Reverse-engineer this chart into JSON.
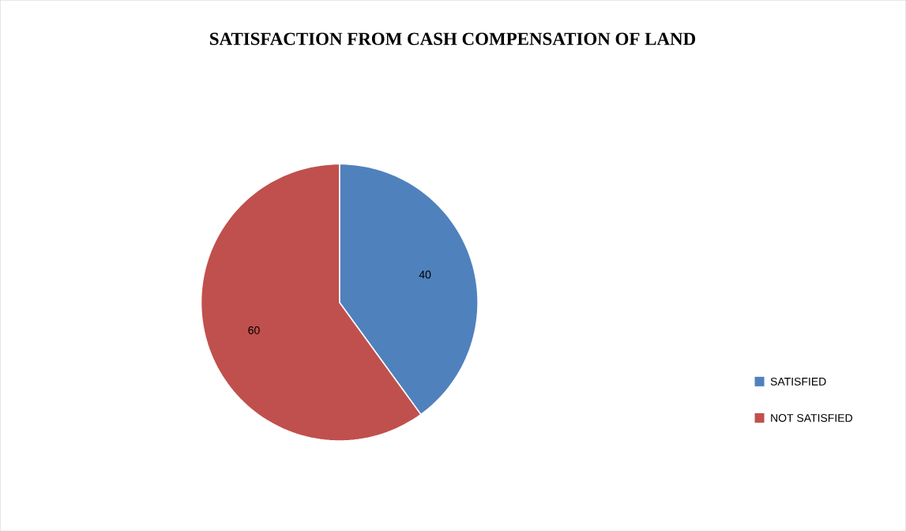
{
  "chart_data": {
    "type": "pie",
    "title": "SATISFACTION FROM CASH COMPENSATION OF LAND",
    "categories": [
      "SATISFIED",
      "NOT SATISFIED"
    ],
    "values": [
      40,
      60
    ],
    "colors": [
      "#4f81bd",
      "#c0504d"
    ],
    "data_labels": true,
    "legend": "right"
  }
}
